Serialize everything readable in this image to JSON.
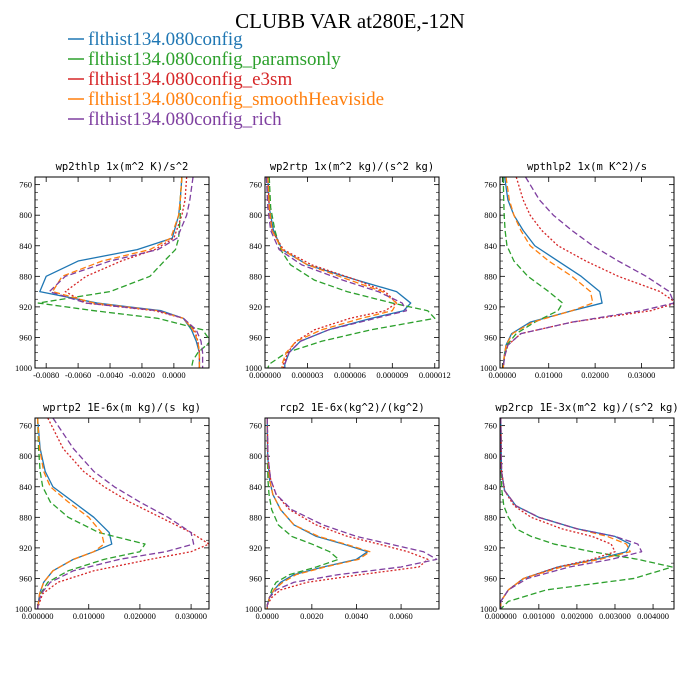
{
  "figure": {
    "title": "CLUBB VAR at280E,-12N"
  },
  "legend": [
    {
      "label": "flthist134.080config",
      "color": "#1f77b4",
      "dash": "solid"
    },
    {
      "label": "flthist134.080config_paramsonly",
      "color": "#2ca02c",
      "dash": "dashed"
    },
    {
      "label": "flthist134.080config_e3sm",
      "color": "#d62728",
      "dash": "dotted"
    },
    {
      "label": "flthist134.080config_smoothHeaviside",
      "color": "#ff7f0e",
      "dash": "dashed"
    },
    {
      "label": "flthist134.080config_rich",
      "color": "#7f3fa0",
      "dash": "dashed"
    }
  ],
  "chart_data": [
    {
      "type": "line",
      "title": "wp2thlp  1x(m^2 K)/s^2",
      "ylim": [
        1000,
        750
      ],
      "yticks": [
        "760",
        "800",
        "840",
        "880",
        "920",
        "960",
        "1000"
      ],
      "yticks_values": [
        760,
        800,
        840,
        880,
        920,
        960,
        1000
      ],
      "xlim": [
        -0.0087,
        0.0022
      ],
      "xticks": [
        "-0.0080",
        "-0.0060",
        "-0.0040",
        "-0.0020",
        "0.0000"
      ],
      "xticks_values": [
        -0.008,
        -0.006,
        -0.004,
        -0.002,
        0.0
      ],
      "y": [
        750,
        780,
        800,
        830,
        845,
        860,
        880,
        900,
        915,
        925,
        935,
        950,
        965,
        980,
        990,
        1000
      ],
      "series": [
        {
          "values": [
            0.0005,
            0.0004,
            0.0003,
            -0.0001,
            -0.0023,
            -0.006,
            -0.008,
            -0.0084,
            -0.0048,
            -0.0008,
            0.0006,
            0.0011,
            0.0014,
            0.0016,
            0.0016,
            0.0016
          ]
        },
        {
          "values": [
            0.0005,
            0.0004,
            0.0004,
            0.0003,
            0.0001,
            -0.0006,
            -0.0015,
            -0.004,
            -0.0085,
            -0.005,
            -0.001,
            0.0018,
            0.0023,
            0.0015,
            0.0012,
            0.0011
          ]
        },
        {
          "values": [
            0.0008,
            0.0007,
            0.0005,
            0.0,
            -0.0012,
            -0.0033,
            -0.0055,
            -0.0068,
            -0.0055,
            -0.0012,
            0.0006,
            0.0013,
            0.0015,
            0.0016,
            0.0016,
            0.0016
          ]
        },
        {
          "values": [
            0.0005,
            0.0004,
            0.0003,
            -0.0002,
            -0.0015,
            -0.0045,
            -0.007,
            -0.0076,
            -0.005,
            -0.001,
            0.0006,
            0.0012,
            0.0015,
            0.0016,
            0.0016,
            0.0016
          ]
        },
        {
          "values": [
            0.0012,
            0.001,
            0.0008,
            0.0002,
            -0.001,
            -0.004,
            -0.0068,
            -0.0078,
            -0.0055,
            -0.001,
            0.0006,
            0.0014,
            0.0017,
            0.0018,
            0.0018,
            0.0018
          ]
        }
      ]
    },
    {
      "type": "line",
      "title": "wp2rtp  1x(m^2 kg)/(s^2 kg)",
      "ylim": [
        1000,
        750
      ],
      "yticks": [
        "760",
        "800",
        "840",
        "880",
        "920",
        "960",
        "1000"
      ],
      "yticks_values": [
        760,
        800,
        840,
        880,
        920,
        960,
        1000
      ],
      "xlim": [
        0,
        1.23e-05
      ],
      "xticks": [
        "0.000000",
        "0.000003",
        "0.000006",
        "0.000009",
        "0.000012"
      ],
      "xticks_values": [
        0,
        3e-06,
        6e-06,
        9e-06,
        1.2e-05
      ],
      "y": [
        750,
        790,
        820,
        845,
        865,
        885,
        900,
        915,
        925,
        935,
        950,
        965,
        980,
        995,
        1000
      ],
      "series": [
        {
          "values": [
            2e-07,
            3e-07,
            6e-07,
            1.2e-06,
            3e-06,
            6.5e-06,
            9.3e-06,
            1.03e-05,
            9.8e-06,
            7.5e-06,
            4.5e-06,
            2.5e-06,
            1.7e-06,
            1.4e-06,
            1.4e-06
          ]
        },
        {
          "values": [
            3e-07,
            4e-07,
            7e-07,
            1.1e-06,
            1.8e-06,
            3.5e-06,
            5.8e-06,
            9e-06,
            1.15e-05,
            1.2e-05,
            7.5e-06,
            4e-06,
            1.5e-06,
            3e-07,
            2e-07
          ]
        },
        {
          "values": [
            2e-07,
            3e-07,
            5e-07,
            1.3e-06,
            3.3e-06,
            6.5e-06,
            8.5e-06,
            9.3e-06,
            8.5e-06,
            6e-06,
            3.5e-06,
            2.2e-06,
            1.6e-06,
            1.3e-06,
            1.3e-06
          ]
        },
        {
          "values": [
            2e-07,
            3e-07,
            5e-07,
            1.2e-06,
            3e-06,
            6e-06,
            8.3e-06,
            9.3e-06,
            9e-06,
            6.8e-06,
            4e-06,
            2.2e-06,
            1.5e-06,
            1.2e-06,
            1.2e-06
          ]
        },
        {
          "values": [
            1e-07,
            2e-07,
            4e-07,
            1e-06,
            2.6e-06,
            5.5e-06,
            8e-06,
            9.7e-06,
            1e-05,
            7.8e-06,
            4.5e-06,
            2.5e-06,
            1.7e-06,
            1.4e-06,
            1.4e-06
          ]
        }
      ]
    },
    {
      "type": "line",
      "title": "wpthlp2  1x(m K^2)/s",
      "ylim": [
        1000,
        750
      ],
      "yticks": [
        "760",
        "800",
        "840",
        "880",
        "920",
        "960",
        "1000"
      ],
      "yticks_values": [
        760,
        800,
        840,
        880,
        920,
        960,
        1000
      ],
      "xlim": [
        -0.0005,
        0.037
      ],
      "xticks": [
        "0.00000",
        "0.01000",
        "0.02000",
        "0.03000"
      ],
      "xticks_values": [
        0.0,
        0.01,
        0.02,
        0.03
      ],
      "y": [
        750,
        780,
        800,
        820,
        840,
        860,
        880,
        900,
        915,
        925,
        940,
        955,
        970,
        985,
        1000
      ],
      "series": [
        {
          "values": [
            0.0005,
            0.0012,
            0.0025,
            0.0045,
            0.007,
            0.012,
            0.017,
            0.021,
            0.0215,
            0.015,
            0.006,
            0.002,
            0.0008,
            0.0004,
            0.0002
          ]
        },
        {
          "values": [
            0.0002,
            0.0003,
            0.0004,
            0.0006,
            0.001,
            0.0025,
            0.0055,
            0.01,
            0.013,
            0.012,
            0.007,
            0.003,
            0.001,
            0.0004,
            0.0002
          ]
        },
        {
          "values": [
            0.003,
            0.0045,
            0.006,
            0.0085,
            0.012,
            0.018,
            0.025,
            0.034,
            0.0375,
            0.032,
            0.015,
            0.004,
            0.0012,
            0.0005,
            0.0002
          ]
        },
        {
          "values": [
            0.0008,
            0.0015,
            0.0025,
            0.004,
            0.006,
            0.01,
            0.015,
            0.019,
            0.0195,
            0.015,
            0.0065,
            0.0022,
            0.0008,
            0.0004,
            0.0002
          ]
        },
        {
          "values": [
            0.005,
            0.008,
            0.011,
            0.015,
            0.0195,
            0.025,
            0.031,
            0.036,
            0.037,
            0.03,
            0.015,
            0.004,
            0.0012,
            0.0005,
            0.0002
          ]
        }
      ]
    },
    {
      "type": "line",
      "title": "wprtp2  1E-6x(m kg)/(s kg)",
      "ylim": [
        1000,
        750
      ],
      "yticks": [
        "760",
        "800",
        "840",
        "880",
        "920",
        "960",
        "1000"
      ],
      "yticks_values": [
        760,
        800,
        840,
        880,
        920,
        960,
        1000
      ],
      "xlim": [
        -0.0005,
        0.0335
      ],
      "xticks": [
        "0.000000",
        "0.010000",
        "0.020000",
        "0.030000"
      ],
      "xticks_values": [
        0.0,
        0.01,
        0.02,
        0.03
      ],
      "y": [
        750,
        790,
        820,
        840,
        860,
        880,
        900,
        915,
        925,
        935,
        950,
        965,
        980,
        995,
        1000
      ],
      "series": [
        {
          "values": [
            0.0,
            0.0005,
            0.0015,
            0.003,
            0.007,
            0.011,
            0.014,
            0.0145,
            0.011,
            0.007,
            0.003,
            0.0012,
            0.0004,
            0.0001,
            0.0
          ]
        },
        {
          "values": [
            0.0,
            0.0002,
            0.0005,
            0.001,
            0.0025,
            0.006,
            0.012,
            0.021,
            0.02,
            0.013,
            0.006,
            0.002,
            0.0006,
            0.0001,
            0.0
          ]
        },
        {
          "values": [
            0.002,
            0.005,
            0.009,
            0.013,
            0.018,
            0.024,
            0.03,
            0.0335,
            0.03,
            0.022,
            0.011,
            0.004,
            0.001,
            0.0002,
            0.0
          ]
        },
        {
          "values": [
            0.0,
            0.0004,
            0.0012,
            0.0025,
            0.006,
            0.01,
            0.0125,
            0.013,
            0.011,
            0.007,
            0.003,
            0.0012,
            0.0004,
            0.0001,
            0.0
          ]
        },
        {
          "values": [
            0.003,
            0.007,
            0.011,
            0.015,
            0.02,
            0.0255,
            0.03,
            0.0305,
            0.025,
            0.016,
            0.007,
            0.0025,
            0.0007,
            0.0001,
            0.0
          ]
        }
      ]
    },
    {
      "type": "line",
      "title": "rcp2  1E-6x(kg^2)/(kg^2)",
      "ylim": [
        1000,
        750
      ],
      "yticks": [
        "760",
        "800",
        "840",
        "880",
        "920",
        "960",
        "1000"
      ],
      "yticks_values": [
        760,
        800,
        840,
        880,
        920,
        960,
        1000
      ],
      "xlim": [
        -0.0001,
        0.0077
      ],
      "xticks": [
        "0.0000",
        "0.0020",
        "0.0040",
        "0.0060"
      ],
      "xticks_values": [
        0.0,
        0.002,
        0.004,
        0.006
      ],
      "y": [
        750,
        800,
        830,
        850,
        870,
        890,
        905,
        915,
        925,
        935,
        945,
        955,
        965,
        975,
        985,
        995,
        1000
      ],
      "series": [
        {
          "values": [
            0,
            2e-05,
            0.0001,
            0.00025,
            0.0006,
            0.0012,
            0.0022,
            0.0034,
            0.0045,
            0.004,
            0.0025,
            0.0012,
            0.0006,
            0.0003,
            0.0001,
            0.0,
            0.0
          ]
        },
        {
          "values": [
            0,
            1e-05,
            3e-05,
            8e-05,
            0.0002,
            0.0005,
            0.0011,
            0.002,
            0.0028,
            0.0032,
            0.0022,
            0.001,
            0.0004,
            0.0002,
            0.0001,
            0.0,
            0.0
          ]
        },
        {
          "values": [
            0,
            3e-05,
            0.00015,
            0.0004,
            0.001,
            0.0022,
            0.0036,
            0.005,
            0.0063,
            0.0072,
            0.0068,
            0.0042,
            0.0018,
            0.0006,
            0.0002,
            0.0,
            0.0
          ]
        },
        {
          "values": [
            0,
            2e-05,
            0.0001,
            0.00025,
            0.0006,
            0.0012,
            0.0023,
            0.0035,
            0.0046,
            0.0041,
            0.0026,
            0.0013,
            0.0007,
            0.0003,
            0.0001,
            0.0,
            0.0
          ]
        },
        {
          "values": [
            0,
            3e-05,
            0.00015,
            0.0004,
            0.0011,
            0.0025,
            0.004,
            0.0055,
            0.007,
            0.0076,
            0.006,
            0.0032,
            0.0012,
            0.0004,
            0.0001,
            0.0,
            0.0
          ]
        }
      ]
    },
    {
      "type": "line",
      "title": "wp2rcp  1E-3x(m^2 kg)/(s^2 kg)",
      "ylim": [
        1000,
        750
      ],
      "yticks": [
        "760",
        "800",
        "840",
        "880",
        "920",
        "960",
        "1000"
      ],
      "yticks_values": [
        760,
        800,
        840,
        880,
        920,
        960,
        1000
      ],
      "xlim": [
        -2e-05,
        0.00455
      ],
      "xticks": [
        "0.000000",
        "0.001000",
        "0.002000",
        "0.003000",
        "0.004000"
      ],
      "xticks_values": [
        0.0,
        0.001,
        0.002,
        0.003,
        0.004
      ],
      "y": [
        750,
        820,
        845,
        865,
        880,
        895,
        905,
        915,
        925,
        935,
        945,
        960,
        975,
        990,
        1000
      ],
      "series": [
        {
          "values": [
            0,
            2e-05,
            0.0001,
            0.0004,
            0.001,
            0.002,
            0.003,
            0.0034,
            0.0033,
            0.0025,
            0.0015,
            0.0006,
            0.0002,
            0.0,
            0.0
          ]
        },
        {
          "values": [
            0,
            1e-05,
            3e-05,
            8e-05,
            0.0002,
            0.0004,
            0.0008,
            0.0014,
            0.0024,
            0.0036,
            0.0045,
            0.0035,
            0.0012,
            0.0002,
            0.0
          ]
        },
        {
          "values": [
            0,
            2e-05,
            0.0001,
            0.00035,
            0.0008,
            0.0016,
            0.0024,
            0.0029,
            0.003,
            0.0024,
            0.0015,
            0.0006,
            0.0002,
            0.0,
            0.0
          ]
        },
        {
          "values": [
            0,
            2e-05,
            0.0001,
            0.0004,
            0.001,
            0.002,
            0.0028,
            0.0033,
            0.0034,
            0.0026,
            0.0016,
            0.0006,
            0.0002,
            0.0,
            0.0
          ]
        },
        {
          "values": [
            0,
            2e-05,
            0.0001,
            0.0004,
            0.001,
            0.002,
            0.003,
            0.0036,
            0.0037,
            0.0029,
            0.0018,
            0.0007,
            0.0002,
            0.0,
            0.0
          ]
        }
      ]
    }
  ]
}
